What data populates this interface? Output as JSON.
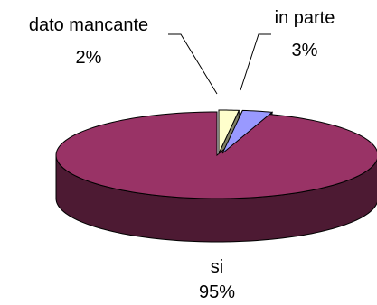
{
  "chart_data": {
    "type": "pie",
    "style": "3d-exploded",
    "slices": [
      {
        "label": "si",
        "value": 95,
        "display": "95%",
        "color": "#993366",
        "side_color": "#4d1a33"
      },
      {
        "label": "in parte",
        "value": 3,
        "display": "3%",
        "color": "#9999ff",
        "side_color": "#4d4d80"
      },
      {
        "label": "dato mancante",
        "value": 2,
        "display": "2%",
        "color": "#ffffcc",
        "side_color": "#808066"
      }
    ],
    "legend": "none"
  }
}
